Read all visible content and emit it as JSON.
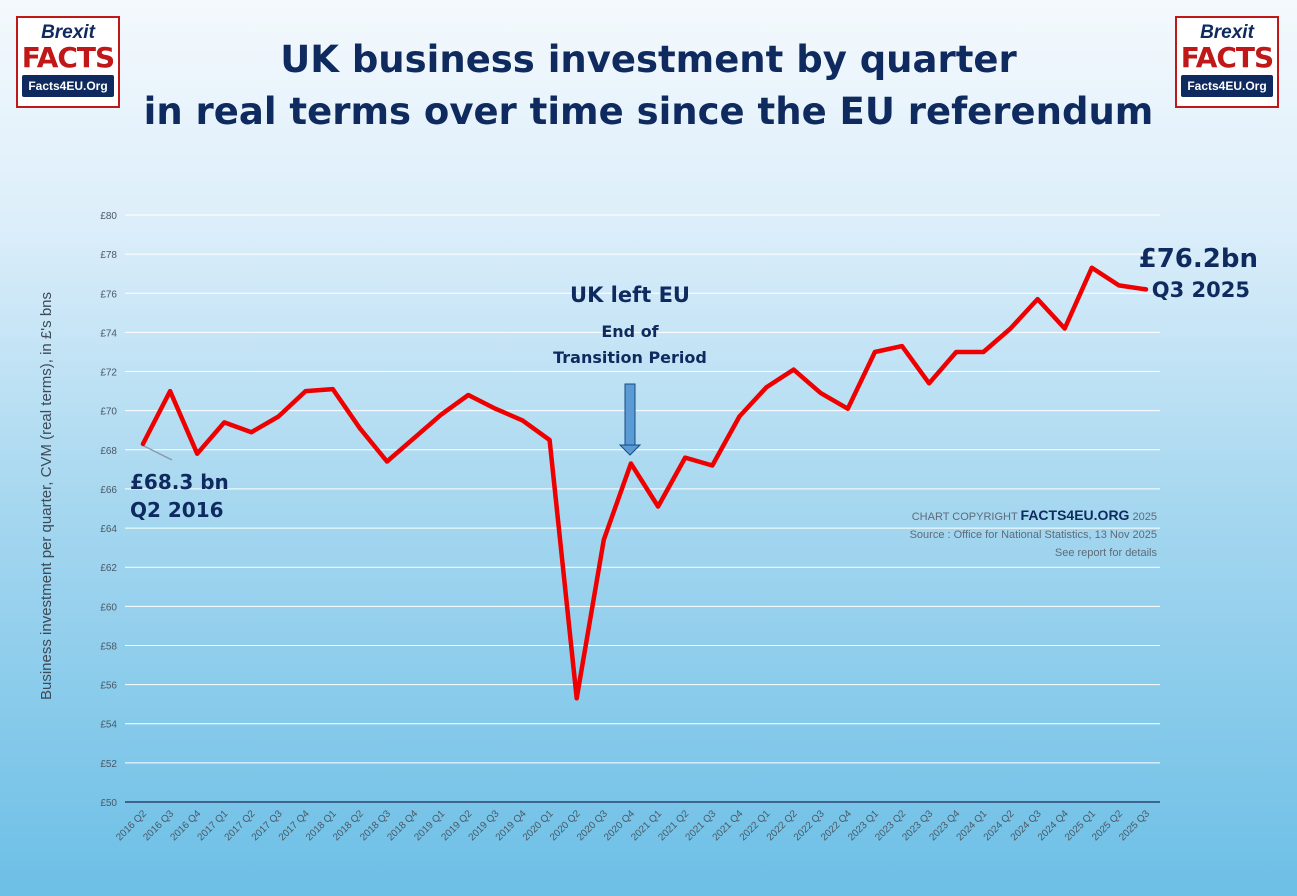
{
  "title": {
    "line1": "UK business investment by quarter",
    "line2": "in real terms over time since the EU referendum"
  },
  "logo_left": {
    "top": "Brexit",
    "middle": "FACTS",
    "bottom": "Facts4EU.Org"
  },
  "logo_right": {
    "top": "Brexit",
    "middle": "FACTS",
    "bottom": "Facts4EU.Org"
  },
  "annotations": {
    "start_value": "£68.3 bn",
    "start_period": "Q2 2016",
    "end_value": "£76.2bn",
    "end_period": "Q3 2025",
    "event_title": "UK left EU",
    "event_sub1": "End of",
    "event_sub2": "Transition Period"
  },
  "credit": {
    "prefix": "CHART COPYRIGHT",
    "brand": "FACTS4EU.ORG",
    "year": "2025",
    "source": "Source : Office for National Statistics, 13 Nov 2025",
    "note": "See report for details"
  },
  "colors": {
    "line": "#ee0000",
    "title": "#0e2a5e",
    "arrow": "#5b9bd5",
    "logo_red": "#c01818"
  },
  "chart_data": {
    "type": "line",
    "title": "UK business investment by quarter in real terms over time since the EU referendum",
    "xlabel": "",
    "ylabel": "Business investment per quarter, CVM (real terms), in £'s bns",
    "ylim": [
      50,
      80
    ],
    "y_ticks": [
      "£50",
      "£52",
      "£54",
      "£56",
      "£58",
      "£60",
      "£62",
      "£64",
      "£66",
      "£68",
      "£70",
      "£72",
      "£74",
      "£76",
      "£78",
      "£80"
    ],
    "grid": true,
    "categories": [
      "2016 Q2",
      "2016 Q3",
      "2016 Q4",
      "2017 Q1",
      "2017 Q2",
      "2017 Q3",
      "2017 Q4",
      "2018 Q1",
      "2018 Q2",
      "2018 Q3",
      "2018 Q4",
      "2019 Q1",
      "2019 Q2",
      "2019 Q3",
      "2019 Q4",
      "2020 Q1",
      "2020 Q2",
      "2020 Q3",
      "2020 Q4",
      "2021 Q1",
      "2021 Q2",
      "2021 Q3",
      "2021 Q4",
      "2022 Q1",
      "2022 Q2",
      "2022 Q3",
      "2022 Q4",
      "2023 Q1",
      "2023 Q2",
      "2023 Q3",
      "2023 Q4",
      "2024 Q1",
      "2024 Q2",
      "2024 Q3",
      "2024 Q4",
      "2025 Q1",
      "2025 Q2",
      "2025 Q3"
    ],
    "series": [
      {
        "values": [
          68.3,
          71.0,
          67.8,
          69.4,
          68.9,
          69.7,
          71.0,
          71.1,
          69.1,
          67.4,
          68.6,
          69.8,
          70.8,
          70.1,
          69.5,
          68.5,
          55.3,
          63.4,
          67.3,
          65.1,
          67.6,
          67.2,
          69.7,
          71.2,
          72.1,
          70.9,
          70.1,
          73.0,
          73.3,
          71.4,
          73.0,
          73.0,
          74.2,
          75.7,
          74.2,
          77.3,
          76.4,
          76.2
        ]
      }
    ]
  }
}
